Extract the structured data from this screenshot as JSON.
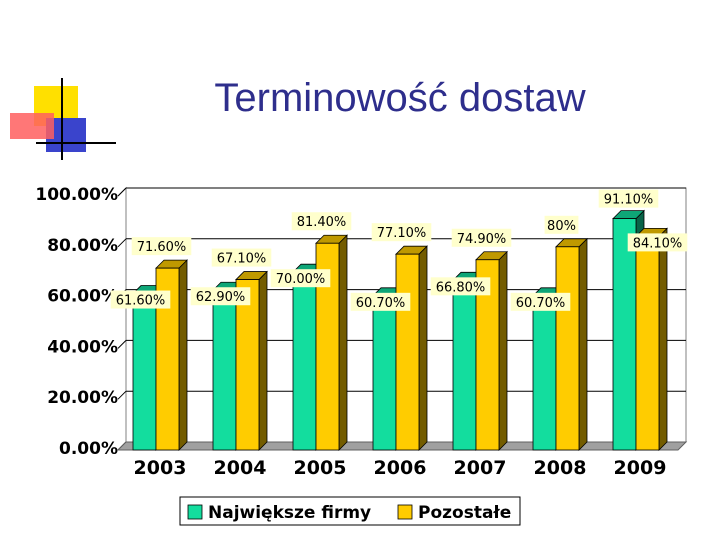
{
  "page": {
    "title": "Terminowość dostaw"
  },
  "chart_data": {
    "type": "bar",
    "title": "Terminowość dostaw",
    "categories": [
      "2003",
      "2004",
      "2005",
      "2006",
      "2007",
      "2008",
      "2009"
    ],
    "series": [
      {
        "name": "Największe firmy",
        "color": "#13dd9e",
        "values": [
          61.6,
          62.9,
          70.0,
          60.7,
          66.8,
          60.7,
          91.1
        ],
        "labels": [
          "61.60%",
          "62.90%",
          "70.00%",
          "60.70%",
          "66.80%",
          "60.70%",
          "91.10%"
        ]
      },
      {
        "name": "Pozostałe",
        "color": "#ffcc00",
        "values": [
          71.6,
          67.1,
          81.4,
          77.1,
          74.9,
          80.0,
          84.1
        ],
        "labels": [
          "71.60%",
          "67.10%",
          "81.40%",
          "77.10%",
          "74.90%",
          "80%",
          "84.10%"
        ]
      }
    ],
    "yticks": [
      "0.00%",
      "20.00%",
      "40.00%",
      "60.00%",
      "80.00%",
      "100.00%"
    ],
    "ylim": [
      0,
      100
    ],
    "grid": true,
    "legend_position": "bottom",
    "chart_style": "3d-clustered-bar"
  }
}
